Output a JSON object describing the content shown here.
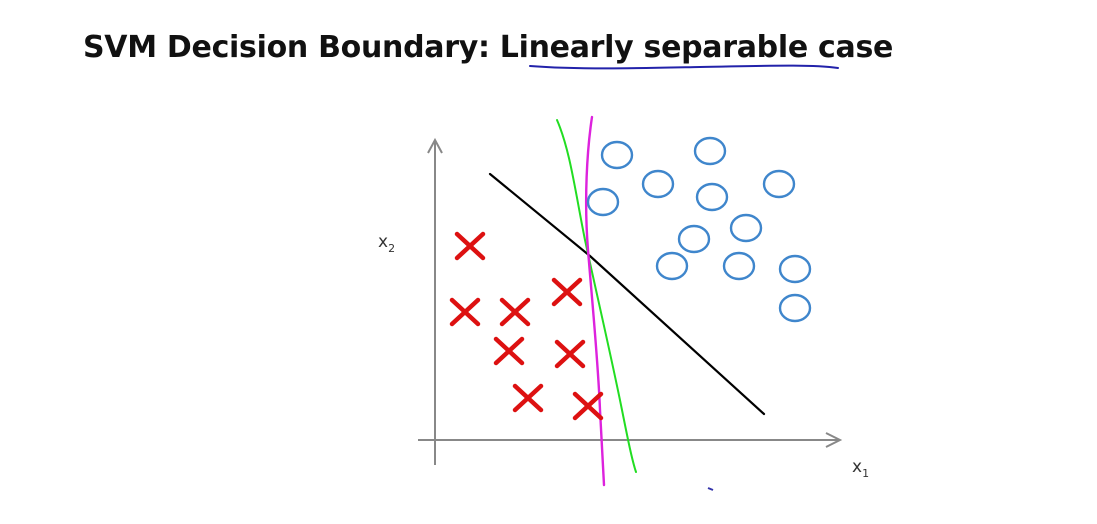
{
  "title": {
    "prefix": "SVM Decision Boundary: ",
    "emphasis": "Linearly separable",
    "suffix": " case"
  },
  "axes": {
    "x_label": "x",
    "x_subscript": "1",
    "y_label": "x",
    "y_subscript": "2"
  },
  "colors": {
    "positive_class": "#dd1111",
    "negative_class": "#3f86cc",
    "black_boundary": "#000000",
    "green_boundary": "#22dd22",
    "magenta_boundary": "#dd22dd",
    "underline": "#2222aa",
    "axis": "#888888"
  },
  "icons": {
    "positive": "x-cross-icon",
    "negative": "circle-icon"
  }
}
